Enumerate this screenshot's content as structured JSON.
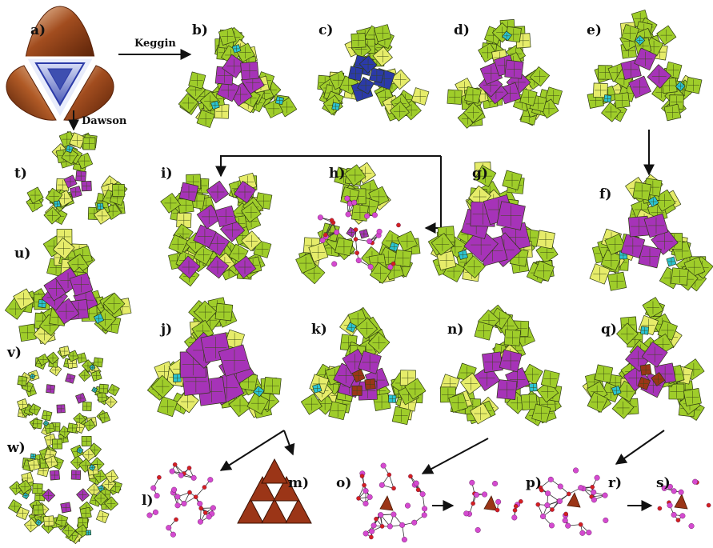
{
  "panels": [
    {
      "id": "a",
      "label": "a)"
    },
    {
      "id": "b",
      "label": "b)"
    },
    {
      "id": "c",
      "label": "c)"
    },
    {
      "id": "d",
      "label": "d)"
    },
    {
      "id": "e",
      "label": "e)"
    },
    {
      "id": "f",
      "label": "f)"
    },
    {
      "id": "g",
      "label": "g)"
    },
    {
      "id": "h",
      "label": "h)"
    },
    {
      "id": "i",
      "label": "i)"
    },
    {
      "id": "j",
      "label": "j)"
    },
    {
      "id": "k",
      "label": "k)"
    },
    {
      "id": "l",
      "label": "l)"
    },
    {
      "id": "m",
      "label": "m)"
    },
    {
      "id": "n",
      "label": "n)"
    },
    {
      "id": "o",
      "label": "o)"
    },
    {
      "id": "p",
      "label": "p)"
    },
    {
      "id": "q",
      "label": "q)"
    },
    {
      "id": "r",
      "label": "r)"
    },
    {
      "id": "s",
      "label": "s)"
    },
    {
      "id": "t",
      "label": "t)"
    },
    {
      "id": "u",
      "label": "u)"
    },
    {
      "id": "v",
      "label": "v)"
    },
    {
      "id": "w",
      "label": "w)"
    }
  ],
  "arrows": {
    "keggin_label": "Keggin",
    "dawson_label": "Dawson"
  },
  "colors": {
    "polyhedron_green": "#9fcd2a",
    "polyhedron_yellow": "#e6ec6a",
    "polyhedron_purple": "#a633b8",
    "polyhedron_cyan": "#2bc4d4",
    "polyhedron_blue": "#2b3aa8",
    "polyhedron_brown": "#9b3517",
    "atom_pink": "#d44ad0",
    "atom_red": "#d42020",
    "atom_blue": "#2233cc"
  }
}
